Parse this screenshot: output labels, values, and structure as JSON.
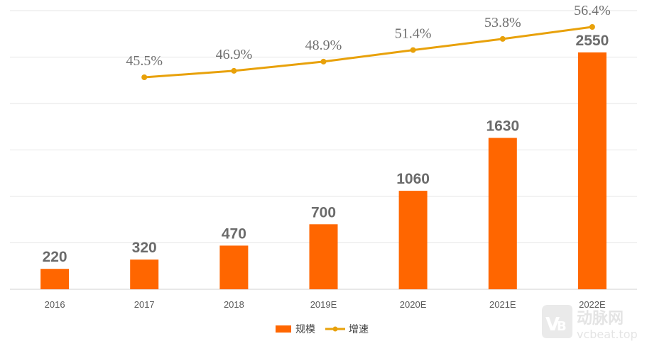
{
  "chart_data": {
    "type": "bar+line",
    "categories": [
      "2016",
      "2017",
      "2018",
      "2019E",
      "2020E",
      "2021E",
      "2022E"
    ],
    "series": [
      {
        "name": "规模",
        "type": "bar",
        "color": "#ff6600",
        "values": [
          220,
          320,
          470,
          700,
          1060,
          1630,
          2550
        ],
        "labels": [
          "220",
          "320",
          "470",
          "700",
          "1060",
          "1630",
          "2550"
        ]
      },
      {
        "name": "增速",
        "type": "line",
        "color": "#e8a10a",
        "values": [
          null,
          45.5,
          46.9,
          48.9,
          51.4,
          53.8,
          56.4
        ],
        "labels": [
          "",
          "45.5%",
          "46.9%",
          "48.9%",
          "51.4%",
          "53.8%",
          "56.4%"
        ]
      }
    ],
    "title": "",
    "xlabel": "",
    "ylabel": "",
    "ylim": [
      0,
      3000
    ],
    "y2lim": [
      0,
      60
    ],
    "grid": true,
    "legend": "bottom-center"
  },
  "watermark": {
    "logo_text": "动脉网",
    "site_text": "vcbeat.top"
  }
}
